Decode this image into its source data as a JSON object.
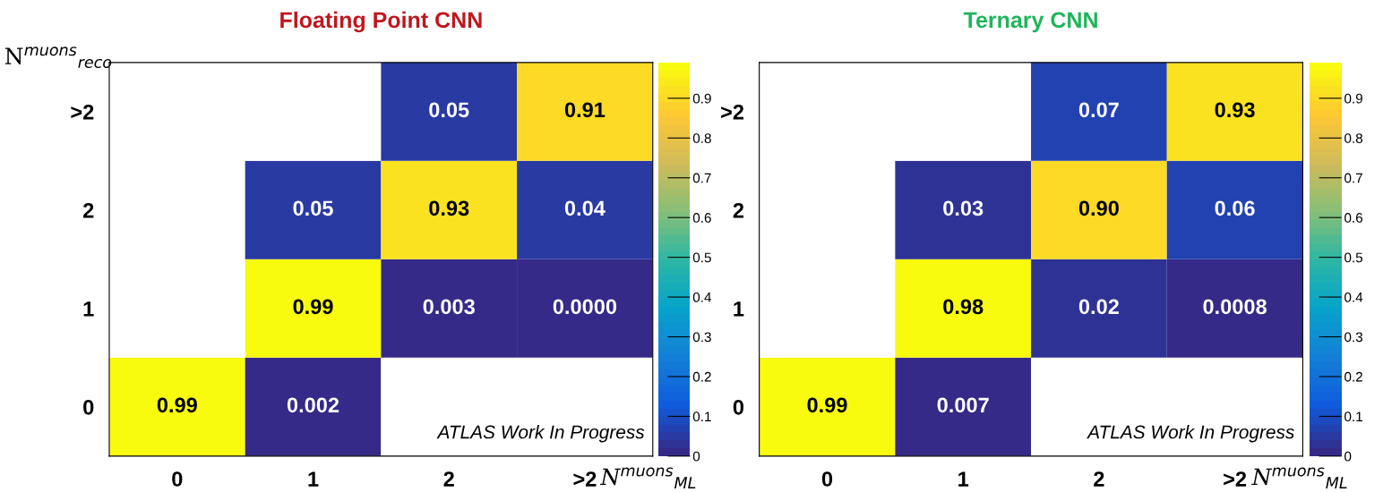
{
  "chart_data": [
    {
      "type": "heatmap",
      "title": "Floating Point CNN",
      "xlabel": "N$^{muons}$$_{ML}$",
      "ylabel": "N$^{muons}$$_{reco}$",
      "categories": [
        "0",
        "1",
        "2",
        ">2"
      ],
      "y_categories": [
        ">2",
        "2",
        "1",
        "0"
      ],
      "cells": [
        [
          null,
          null,
          0.05,
          0.91
        ],
        [
          null,
          0.05,
          0.93,
          0.04
        ],
        [
          null,
          0.99,
          0.003,
          0.0
        ],
        [
          0.99,
          0.002,
          null,
          null
        ]
      ],
      "cell_labels": [
        [
          null,
          null,
          "0.05",
          "0.91"
        ],
        [
          null,
          "0.05",
          "0.93",
          "0.04"
        ],
        [
          null,
          "0.99",
          "0.003",
          "0.0000"
        ],
        [
          "0.99",
          "0.002",
          null,
          null
        ]
      ],
      "clim": [
        0,
        0.99
      ],
      "cticks": [
        0,
        0.1,
        0.2,
        0.3,
        0.4,
        0.5,
        0.6,
        0.7,
        0.8,
        0.9
      ],
      "annotations": [
        "ATLAS Work In Progress"
      ]
    },
    {
      "type": "heatmap",
      "title": "Ternary CNN",
      "xlabel": "N$^{muons}$$_{ML}$",
      "categories": [
        "0",
        "1",
        "2",
        ">2"
      ],
      "y_categories": [
        ">2",
        "2",
        "1",
        "0"
      ],
      "cells": [
        [
          null,
          null,
          0.07,
          0.93
        ],
        [
          null,
          0.03,
          0.9,
          0.06
        ],
        [
          null,
          0.98,
          0.02,
          0.0008
        ],
        [
          0.99,
          0.007,
          null,
          null
        ]
      ],
      "cell_labels": [
        [
          null,
          null,
          "0.07",
          "0.93"
        ],
        [
          null,
          "0.03",
          "0.90",
          "0.06"
        ],
        [
          null,
          "0.98",
          "0.02",
          "0.0008"
        ],
        [
          "0.99",
          "0.007",
          null,
          null
        ]
      ],
      "clim": [
        0,
        0.99
      ],
      "cticks": [
        0,
        0.1,
        0.2,
        0.3,
        0.4,
        0.5,
        0.6,
        0.7,
        0.8,
        0.9
      ],
      "annotations": [
        "ATLAS Work In Progress"
      ]
    }
  ]
}
